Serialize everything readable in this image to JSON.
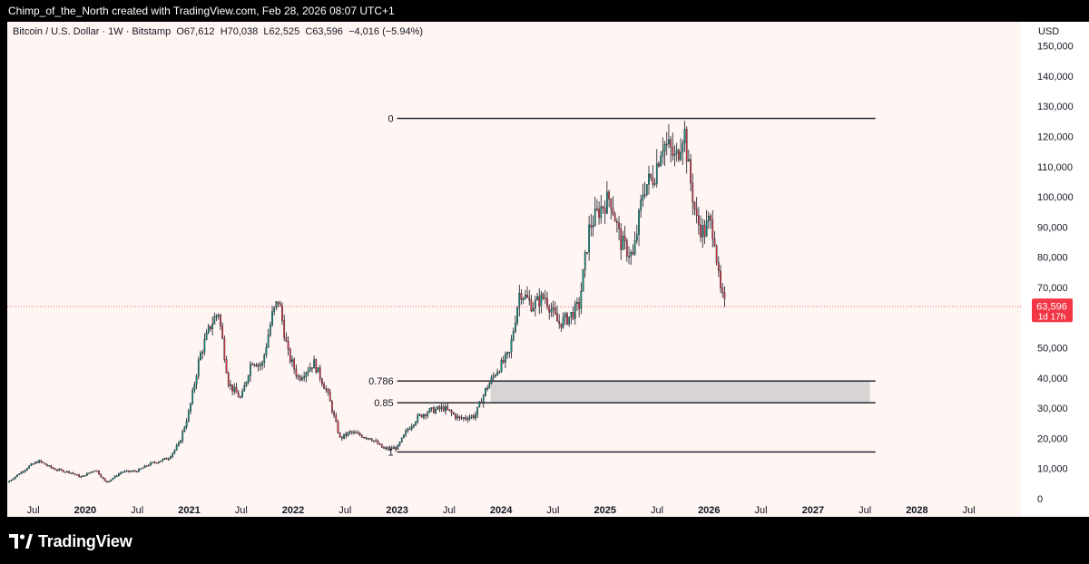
{
  "header": {
    "attribution": "Chimp_of_the_North created with TradingView.com, Feb 28, 2026 08:07 UTC+1"
  },
  "legend": {
    "symbol": "Bitcoin / U.S. Dollar · 1W · Bitstamp",
    "open_label": "O",
    "open": "67,612",
    "high_label": "H",
    "high": "70,038",
    "low_label": "L",
    "low": "62,525",
    "close_label": "C",
    "close": "63,596",
    "change": "−4,016 (−5.94%)"
  },
  "currency": "USD",
  "last_price": {
    "value": "63,596",
    "countdown": "1d 17h",
    "color": "#f23645"
  },
  "brand": {
    "name": "TradingView"
  },
  "colors": {
    "up": "#089981",
    "down": "#f23645",
    "background": "#fff5f3",
    "fib_zone": "#d9d4d4"
  },
  "chart_data": {
    "type": "candlestick",
    "series_name": "Bitcoin / U.S. Dollar",
    "interval": "1W",
    "ylim": [
      -3000,
      158000
    ],
    "xlim": [
      2019.25,
      2029.0
    ],
    "y_ticks": [
      {
        "v": 150000,
        "label": "150,000"
      },
      {
        "v": 140000,
        "label": "140,000"
      },
      {
        "v": 130000,
        "label": "130,000"
      },
      {
        "v": 120000,
        "label": "120,000"
      },
      {
        "v": 110000,
        "label": "110,000"
      },
      {
        "v": 100000,
        "label": "100,000"
      },
      {
        "v": 90000,
        "label": "90,000"
      },
      {
        "v": 80000,
        "label": "80,000"
      },
      {
        "v": 70000,
        "label": "70,000"
      },
      {
        "v": 50000,
        "label": "50,000"
      },
      {
        "v": 40000,
        "label": "40,000"
      },
      {
        "v": 30000,
        "label": "30,000"
      },
      {
        "v": 20000,
        "label": "20,000"
      },
      {
        "v": 10000,
        "label": "10,000"
      },
      {
        "v": 0,
        "label": "0"
      }
    ],
    "x_ticks": [
      {
        "t": 2019.5,
        "label": "Jul",
        "bold": false
      },
      {
        "t": 2020.0,
        "label": "2020",
        "bold": true
      },
      {
        "t": 2020.5,
        "label": "Jul",
        "bold": false
      },
      {
        "t": 2021.0,
        "label": "2021",
        "bold": true
      },
      {
        "t": 2021.5,
        "label": "Jul",
        "bold": false
      },
      {
        "t": 2022.0,
        "label": "2022",
        "bold": true
      },
      {
        "t": 2022.5,
        "label": "Jul",
        "bold": false
      },
      {
        "t": 2023.0,
        "label": "2023",
        "bold": true
      },
      {
        "t": 2023.5,
        "label": "Jul",
        "bold": false
      },
      {
        "t": 2024.0,
        "label": "2024",
        "bold": true
      },
      {
        "t": 2024.5,
        "label": "Jul",
        "bold": false
      },
      {
        "t": 2025.0,
        "label": "2025",
        "bold": true
      },
      {
        "t": 2025.5,
        "label": "Jul",
        "bold": false
      },
      {
        "t": 2026.0,
        "label": "2026",
        "bold": true
      },
      {
        "t": 2026.5,
        "label": "Jul",
        "bold": false
      },
      {
        "t": 2027.0,
        "label": "2027",
        "bold": true
      },
      {
        "t": 2027.5,
        "label": "Jul",
        "bold": false
      },
      {
        "t": 2028.0,
        "label": "2028",
        "bold": true
      },
      {
        "t": 2028.5,
        "label": "Jul",
        "bold": false
      }
    ],
    "price_path": [
      [
        2019.25,
        5400
      ],
      [
        2019.47,
        11000
      ],
      [
        2019.55,
        12500
      ],
      [
        2019.7,
        9800
      ],
      [
        2019.85,
        8800
      ],
      [
        2019.96,
        7200
      ],
      [
        2020.1,
        9700
      ],
      [
        2020.2,
        5300
      ],
      [
        2020.35,
        8900
      ],
      [
        2020.5,
        9200
      ],
      [
        2020.62,
        11500
      ],
      [
        2020.8,
        13500
      ],
      [
        2020.9,
        18000
      ],
      [
        2021.0,
        29000
      ],
      [
        2021.1,
        47000
      ],
      [
        2021.2,
        57000
      ],
      [
        2021.28,
        62000
      ],
      [
        2021.38,
        38000
      ],
      [
        2021.5,
        33000
      ],
      [
        2021.6,
        46000
      ],
      [
        2021.7,
        44000
      ],
      [
        2021.8,
        61000
      ],
      [
        2021.86,
        66000
      ],
      [
        2021.95,
        48000
      ],
      [
        2022.05,
        40000
      ],
      [
        2022.2,
        45000
      ],
      [
        2022.33,
        35000
      ],
      [
        2022.45,
        20000
      ],
      [
        2022.55,
        22000
      ],
      [
        2022.65,
        21000
      ],
      [
        2022.75,
        20000
      ],
      [
        2022.87,
        16500
      ],
      [
        2023.0,
        16800
      ],
      [
        2023.1,
        23000
      ],
      [
        2023.2,
        27000
      ],
      [
        2023.3,
        29000
      ],
      [
        2023.45,
        30000
      ],
      [
        2023.6,
        26500
      ],
      [
        2023.75,
        27500
      ],
      [
        2023.85,
        36000
      ],
      [
        2023.95,
        42000
      ],
      [
        2024.08,
        48000
      ],
      [
        2024.18,
        69000
      ],
      [
        2024.3,
        64000
      ],
      [
        2024.42,
        67000
      ],
      [
        2024.55,
        58000
      ],
      [
        2024.65,
        60000
      ],
      [
        2024.75,
        64000
      ],
      [
        2024.85,
        90000
      ],
      [
        2024.95,
        96000
      ],
      [
        2025.05,
        100000
      ],
      [
        2025.15,
        85000
      ],
      [
        2025.27,
        80000
      ],
      [
        2025.37,
        103000
      ],
      [
        2025.47,
        107000
      ],
      [
        2025.55,
        118000
      ],
      [
        2025.62,
        116000
      ],
      [
        2025.68,
        112000
      ],
      [
        2025.76,
        123000
      ],
      [
        2025.8,
        110000
      ],
      [
        2025.88,
        92000
      ],
      [
        2025.95,
        88000
      ],
      [
        2026.0,
        92000
      ],
      [
        2026.05,
        88000
      ],
      [
        2026.1,
        70000
      ],
      [
        2026.14,
        65000
      ],
      [
        2026.16,
        63596
      ]
    ],
    "fibonacci": {
      "x_start": 2023.0,
      "x_end": 2027.6,
      "levels": [
        {
          "ratio": "0",
          "price": 126000
        },
        {
          "ratio": "0.786",
          "price": 39000
        },
        {
          "ratio": "0.85",
          "price": 31800
        },
        {
          "ratio": "1",
          "price": 15500
        }
      ],
      "zone_from": 39000,
      "zone_to": 31800,
      "zone_x_start": 2023.9
    }
  }
}
